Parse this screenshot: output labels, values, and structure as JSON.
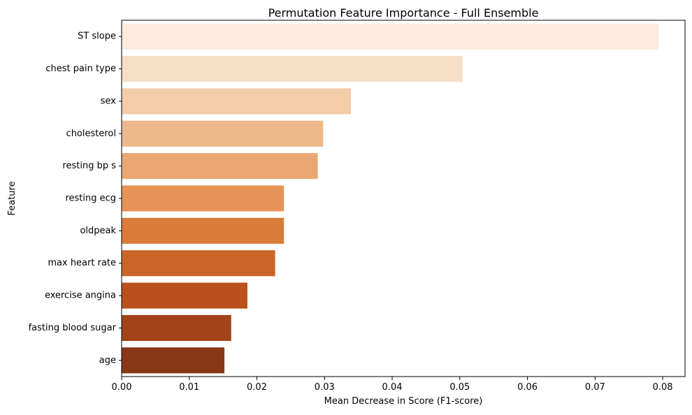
{
  "chart_data": {
    "type": "bar",
    "orientation": "horizontal",
    "title": "Permutation Feature Importance - Full Ensemble",
    "xlabel": "Mean Decrease in Score (F1-score)",
    "ylabel": "Feature",
    "xlim": [
      0,
      0.0833
    ],
    "xticks": [
      "0.00",
      "0.01",
      "0.02",
      "0.03",
      "0.04",
      "0.05",
      "0.06",
      "0.07",
      "0.08"
    ],
    "xtick_values": [
      0,
      0.01,
      0.02,
      0.03,
      0.04,
      0.05,
      0.06,
      0.07,
      0.08
    ],
    "grid": false,
    "categories": [
      "ST slope",
      "chest pain type",
      "sex",
      "cholesterol",
      "resting bp s",
      "resting ecg",
      "oldpeak",
      "max heart rate",
      "exercise angina",
      "fasting blood sugar",
      "age"
    ],
    "values": [
      0.0794,
      0.0504,
      0.0339,
      0.0298,
      0.029,
      0.024,
      0.024,
      0.0227,
      0.0186,
      0.0162,
      0.0152
    ],
    "colors": [
      "#fcebdb",
      "#f7dec7",
      "#f3ccaa",
      "#edb88b",
      "#eaa774",
      "#e79257",
      "#db7b3a",
      "#cb6527",
      "#ba511c",
      "#a24419",
      "#883816"
    ]
  }
}
